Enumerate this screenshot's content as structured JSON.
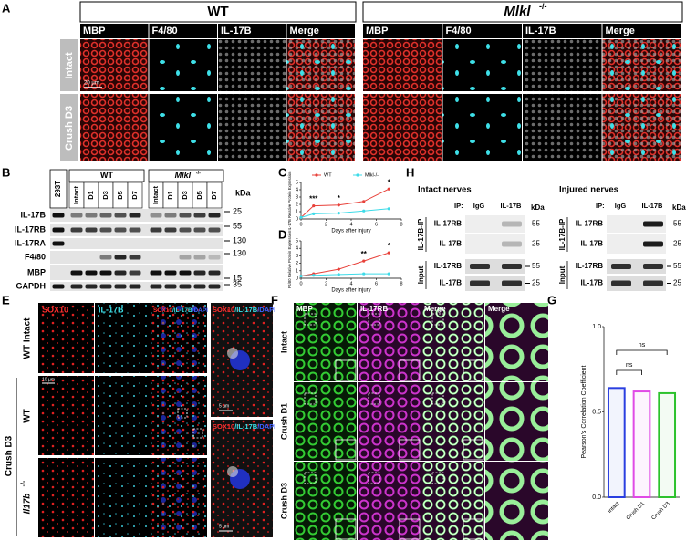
{
  "panel_labels": [
    "A",
    "B",
    "C",
    "D",
    "E",
    "F",
    "G",
    "H"
  ],
  "panel_a": {
    "groups": [
      {
        "name": "WT"
      },
      {
        "name": "Mlkl",
        "sup": "-/-"
      }
    ],
    "columns": [
      "MBP",
      "F4/80",
      "IL-17B",
      "Merge"
    ],
    "rows": [
      "Intact",
      "Crush D3"
    ],
    "scale_bar": "20 µm"
  },
  "panel_b": {
    "first_lane": "293T",
    "groups": [
      {
        "name": "WT"
      },
      {
        "name": "Mlkl",
        "sup": "-/-"
      }
    ],
    "lanes": [
      "Intact",
      "D1",
      "D3",
      "D5",
      "D7"
    ],
    "unit": "kDa",
    "rows": [
      {
        "label": "IL-17B",
        "marker": 25
      },
      {
        "label": "IL-17RB",
        "marker": 55
      },
      {
        "label": "IL-17RA",
        "marker": 130
      },
      {
        "label": "F4/80",
        "marker": 130
      },
      {
        "label": "MBP",
        "marker": 15
      },
      {
        "label": "GAPDH",
        "marker": 35
      }
    ]
  },
  "panel_e": {
    "columns": [
      "SOX10",
      "IL-17B"
    ],
    "merge": [
      "SOX10",
      "/IL-17B",
      "/DAPI"
    ],
    "row_labels": {
      "intact": "WT Intact",
      "group": "Crush D3",
      "wt": "WT",
      "ko": "Il17b",
      "ko_sup": "-/-"
    },
    "scale_bars": [
      "10 µm",
      "5 µm",
      "5 µm"
    ]
  },
  "panel_f": {
    "columns": [
      "MBP",
      "IL-17RB",
      "Merge",
      "Merge"
    ],
    "rows": [
      "Intact",
      "Crush D1",
      "Crush D3"
    ]
  },
  "panel_h": {
    "blocks": [
      "Intact nerves",
      "Injured nerves"
    ],
    "ip": "IP:",
    "lanes": [
      "IgG",
      "IL-17B"
    ],
    "unit": "kDa",
    "sections": [
      {
        "label": "IL-17B-IP",
        "rows": [
          "IL-17RB",
          "IL-17B"
        ],
        "markers": [
          55,
          25
        ]
      },
      {
        "label": "Input",
        "rows": [
          "IL-17RB",
          "IL-17B"
        ],
        "markers": [
          55,
          25
        ]
      }
    ]
  },
  "chart_data": [
    {
      "type": "line",
      "ylabel": "IL-17B Relative Protein Expression",
      "xlabel": "Days after injury",
      "x": [
        0,
        1,
        3,
        5,
        7
      ],
      "xlim": [
        0,
        8
      ],
      "xticks": [
        0,
        2,
        4,
        6,
        8
      ],
      "ylim": [
        0,
        5
      ],
      "yticks": [
        0,
        1,
        2,
        3,
        4,
        5
      ],
      "series": [
        {
          "name": "WT",
          "color": "#e8413a",
          "values": [
            0.2,
            1.8,
            1.9,
            2.4,
            4.1
          ]
        },
        {
          "name": "Mlkl-/-",
          "color": "#3ddbe8",
          "values": [
            0.2,
            0.7,
            0.8,
            1.1,
            1.4
          ]
        }
      ],
      "annotations": [
        {
          "x": 1,
          "label": "***"
        },
        {
          "x": 3,
          "label": "*"
        },
        {
          "x": 7,
          "label": "*"
        }
      ],
      "legend": "top"
    },
    {
      "type": "line",
      "ylabel": "F4/80 Relative Protein Expression",
      "xlabel": "Days after injury",
      "x": [
        0,
        1,
        3,
        5,
        7
      ],
      "xlim": [
        0,
        8
      ],
      "xticks": [
        0,
        2,
        4,
        6,
        8
      ],
      "ylim": [
        0,
        5
      ],
      "yticks": [
        0,
        1,
        2,
        3,
        4,
        5
      ],
      "series": [
        {
          "name": "WT",
          "color": "#e8413a",
          "values": [
            0.3,
            0.6,
            1.2,
            2.3,
            3.4
          ]
        },
        {
          "name": "Mlkl-/-",
          "color": "#3ddbe8",
          "values": [
            0.3,
            0.4,
            0.5,
            0.6,
            0.6
          ]
        }
      ],
      "annotations": [
        {
          "x": 5,
          "label": "**"
        },
        {
          "x": 7,
          "label": "*"
        }
      ]
    },
    {
      "type": "bar",
      "ylabel": "Pearson's Correlation Coefficient",
      "categories": [
        "Intact",
        "Crush D1",
        "Crush D3"
      ],
      "values": [
        0.64,
        0.62,
        0.61
      ],
      "colors": [
        "#2a3fe0",
        "#e04ae6",
        "#2dc22d"
      ],
      "ylim": [
        0,
        1
      ],
      "yticks": [
        {
          "value": 0,
          "label": "0.0"
        },
        0.5,
        {
          "value": 1,
          "label": "1.0"
        }
      ],
      "annotations": [
        "ns",
        "ns"
      ]
    }
  ]
}
